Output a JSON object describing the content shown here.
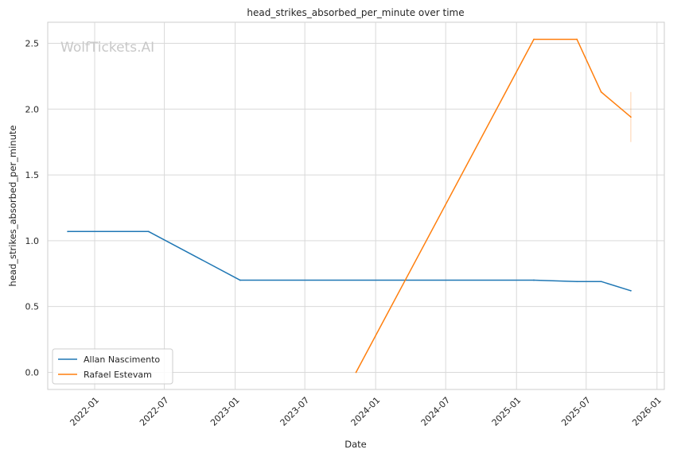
{
  "watermark": "WolfTickets.AI",
  "chart_data": {
    "type": "line",
    "title": "head_strikes_absorbed_per_minute over time",
    "xlabel": "Date",
    "ylabel": "head_strikes_absorbed_per_minute",
    "xlim": [
      "2021-09-01",
      "2026-01-20"
    ],
    "ylim": [
      -0.13,
      2.66
    ],
    "x_ticks": [
      "2022-01",
      "2022-07",
      "2023-01",
      "2023-07",
      "2024-01",
      "2024-07",
      "2025-01",
      "2025-07",
      "2026-01"
    ],
    "y_ticks": [
      0.0,
      0.5,
      1.0,
      1.5,
      2.0,
      2.5
    ],
    "y_tick_labels": [
      "0.0",
      "0.5",
      "1.0",
      "1.5",
      "2.0",
      "2.5"
    ],
    "grid": true,
    "legend_position": "lower-left",
    "series": [
      {
        "name": "Allan Nascimento",
        "color": "#1f77b4",
        "points": [
          {
            "x": "2021-10-23",
            "y": 1.07
          },
          {
            "x": "2022-05-21",
            "y": 1.07
          },
          {
            "x": "2023-01-14",
            "y": 0.7
          },
          {
            "x": "2025-02-15",
            "y": 0.7
          },
          {
            "x": "2025-06-07",
            "y": 0.69
          },
          {
            "x": "2025-08-09",
            "y": 0.69
          },
          {
            "x": "2025-10-25",
            "y": 0.62
          }
        ]
      },
      {
        "name": "Rafael Estevam",
        "color": "#ff7f0e",
        "points": [
          {
            "x": "2023-11-11",
            "y": 0.0
          },
          {
            "x": "2025-02-15",
            "y": 2.53
          },
          {
            "x": "2025-06-07",
            "y": 2.53
          },
          {
            "x": "2025-08-09",
            "y": 2.13
          },
          {
            "x": "2025-10-25",
            "y": 1.94
          }
        ],
        "error_bar": {
          "x": "2025-10-25",
          "low": 1.75,
          "high": 2.13
        }
      }
    ]
  }
}
